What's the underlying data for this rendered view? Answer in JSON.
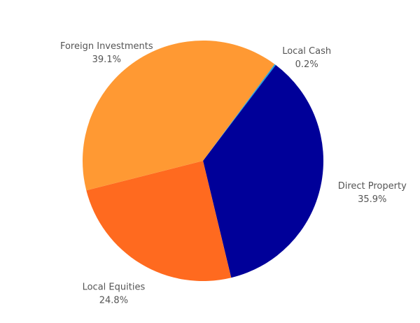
{
  "chart_data": {
    "type": "pie",
    "categories": [
      "Local Cash",
      "Direct Property",
      "Local Equities",
      "Foreign Investments"
    ],
    "values": [
      0.2,
      35.9,
      24.8,
      39.1
    ],
    "value_labels": [
      "0.2%",
      "35.9%",
      "24.8%",
      "39.1%"
    ],
    "colors": [
      "#1ba1e2",
      "#000099",
      "#ff6a1f",
      "#ff9933"
    ]
  }
}
